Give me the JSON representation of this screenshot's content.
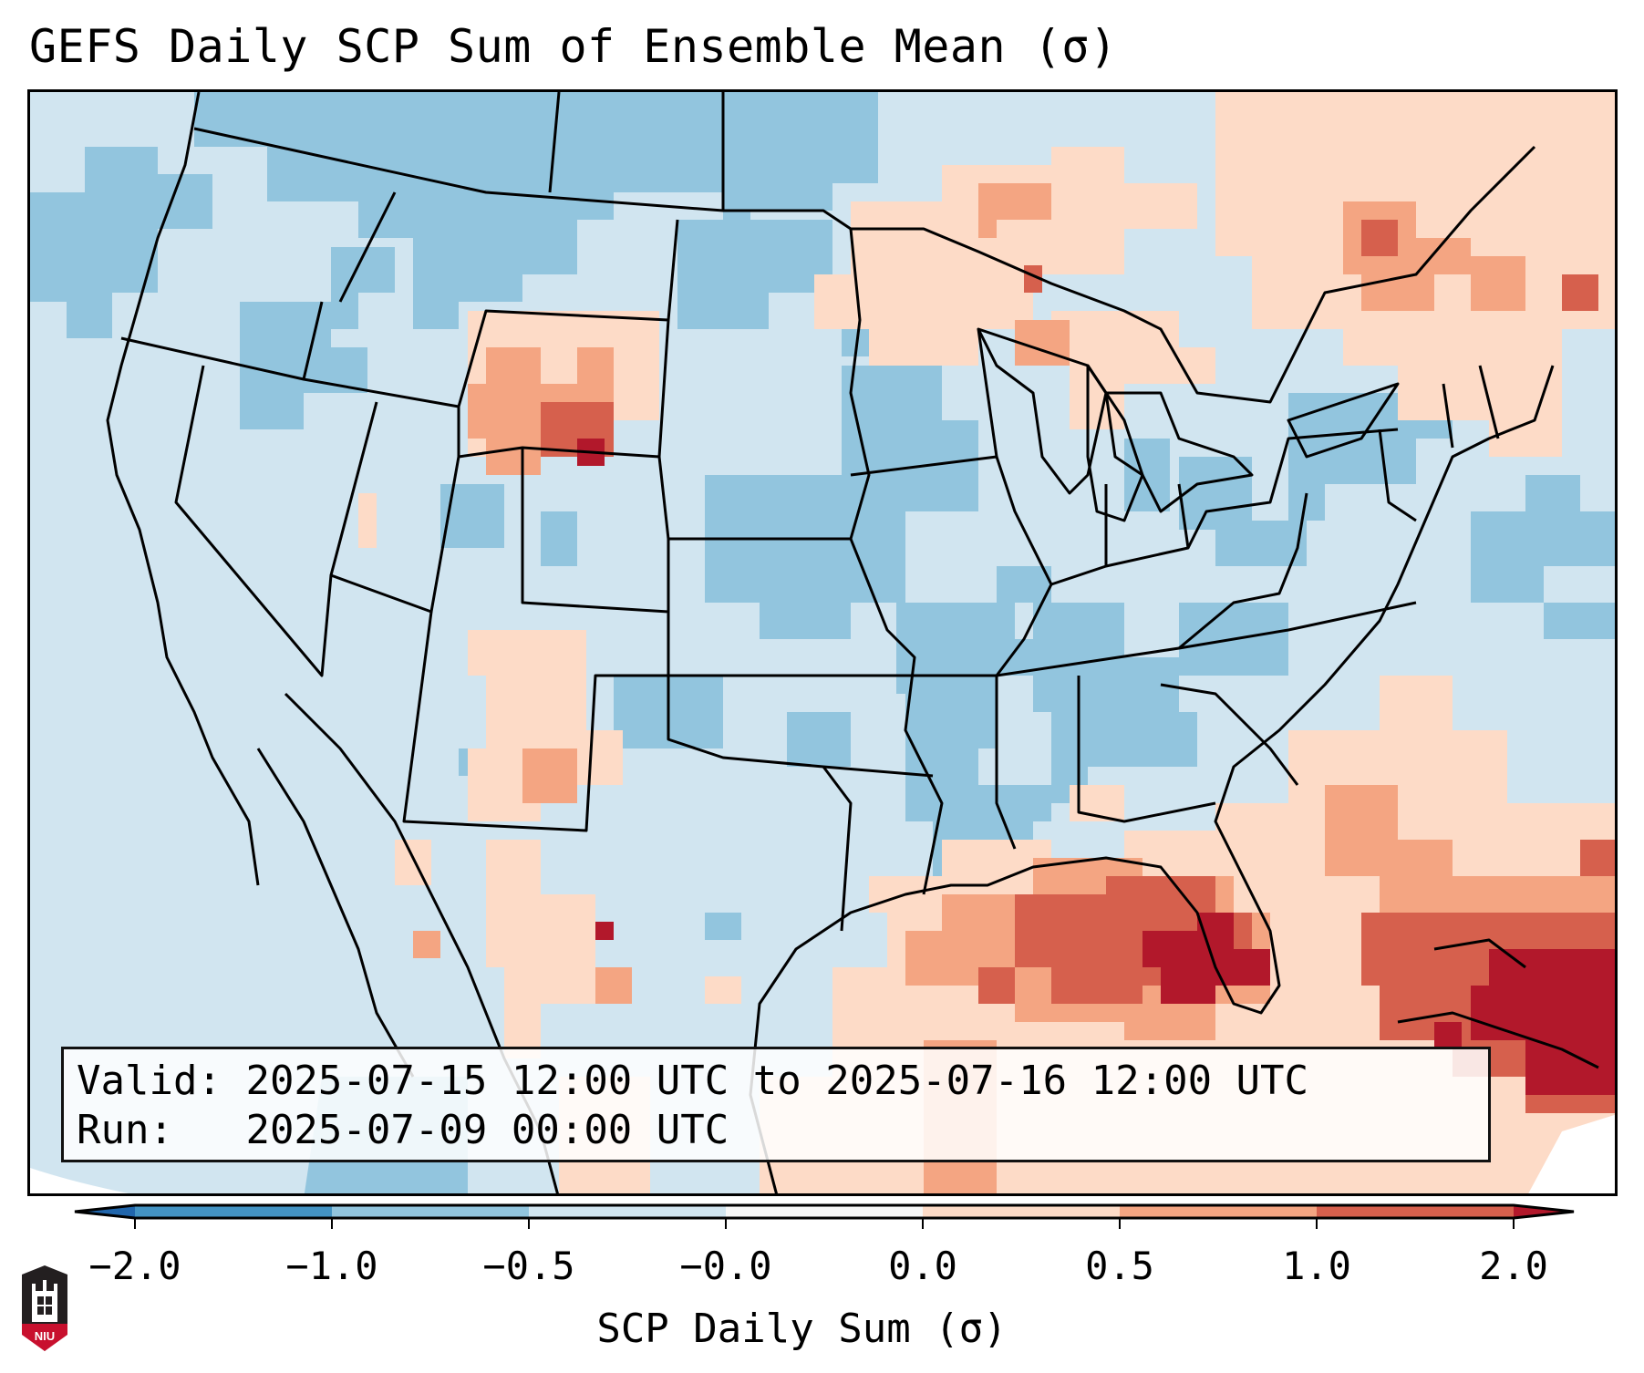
{
  "header": {
    "title": "GEFS Daily SCP Sum of Ensemble Mean (σ)"
  },
  "info_box": {
    "valid_label": "Valid:",
    "valid_value": "2025-07-15 12:00 UTC to 2025-07-16 12:00 UTC",
    "run_label": "Run:",
    "run_value": "2025-07-09 00:00 UTC"
  },
  "colorbar": {
    "label": "SCP Daily Sum (σ)",
    "ticks": [
      "−2.0",
      "−1.0",
      "−0.5",
      "−0.0",
      "0.0",
      "0.5",
      "1.0",
      "2.0"
    ],
    "bins": [
      {
        "from": "<-2.0",
        "color": "#2166ac"
      },
      {
        "from": "-2.0",
        "to": "-1.0",
        "color": "#4393c3"
      },
      {
        "from": "-1.0",
        "to": "-0.5",
        "color": "#92c5de"
      },
      {
        "from": "-0.5",
        "to": "-0.0",
        "color": "#d1e5f0"
      },
      {
        "from": "-0.0",
        "to": "0.0",
        "color": "#f7f7f7"
      },
      {
        "from": "0.0",
        "to": "0.5",
        "color": "#fddbc7"
      },
      {
        "from": "0.5",
        "to": "1.0",
        "color": "#f4a582"
      },
      {
        "from": "1.0",
        "to": "2.0",
        "color": "#d6604d"
      },
      {
        "from": ">2.0",
        "color": "#b2182b"
      }
    ],
    "extend": "both"
  },
  "map": {
    "region": "Continental United States and surroundings",
    "projection": "Lambert Conformal",
    "features": [
      "state boundaries",
      "coastlines",
      "country borders"
    ],
    "highlights": [
      {
        "area": "Gulf of Mexico / Florida / Bahamas / Cuba",
        "level": ">1.0"
      },
      {
        "area": "Wyoming",
        "level": "0.0 to 1.0"
      },
      {
        "area": "Quebec / New England north",
        "level": "0.0 to 1.0"
      },
      {
        "area": "Central and Eastern US",
        "level": "-1.0 to -0.5"
      }
    ]
  },
  "logo": {
    "text": "NIU",
    "colors": {
      "dark": "#231f20",
      "red": "#c8102e"
    }
  }
}
